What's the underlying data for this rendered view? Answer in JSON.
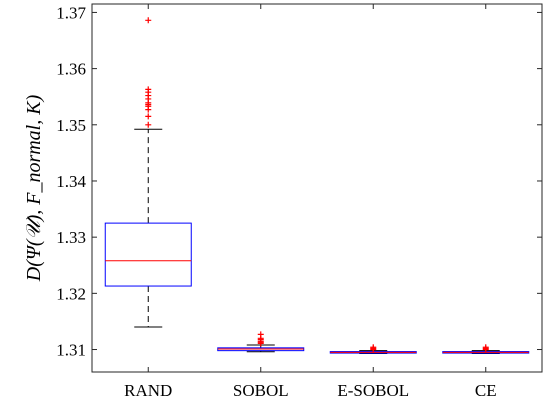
{
  "chart_data": {
    "type": "box",
    "categories": [
      "RAND",
      "SOBOL",
      "E-SOBOL",
      "CE"
    ],
    "ylabel": "D(Ψ(𝒰), F_normal, K)",
    "ylim": [
      1.306,
      1.3715
    ],
    "yticks": [
      1.31,
      1.32,
      1.33,
      1.34,
      1.35,
      1.36,
      1.37
    ],
    "ytick_labels": [
      "1.31",
      "1.32",
      "1.33",
      "1.34",
      "1.35",
      "1.36",
      "1.37"
    ],
    "grid": false,
    "boxes": [
      {
        "category": "RAND",
        "whisker_low": 1.314,
        "q1": 1.3213,
        "median": 1.3258,
        "q3": 1.3325,
        "whisker_high": 1.3492,
        "outliers": [
          1.35,
          1.3515,
          1.3527,
          1.3533,
          1.3536,
          1.3539,
          1.3546,
          1.3552,
          1.3558,
          1.3563,
          1.3686
        ]
      },
      {
        "category": "SOBOL",
        "whisker_low": 1.3096,
        "q1": 1.3098,
        "median": 1.3101,
        "q3": 1.3103,
        "whisker_high": 1.3108,
        "outliers": [
          1.3111,
          1.3113,
          1.3115,
          1.3118,
          1.312,
          1.3127
        ]
      },
      {
        "category": "E-SOBOL",
        "whisker_low": 1.3093,
        "q1": 1.3094,
        "median": 1.3095,
        "q3": 1.3096,
        "whisker_high": 1.3098,
        "outliers": [
          1.31,
          1.3102,
          1.3104
        ]
      },
      {
        "category": "CE",
        "whisker_low": 1.3093,
        "q1": 1.3094,
        "median": 1.3095,
        "q3": 1.3096,
        "whisker_high": 1.3098,
        "outliers": [
          1.31,
          1.3102,
          1.3104
        ]
      }
    ],
    "colors": {
      "box": "#0000ff",
      "median": "#ff0000",
      "whisker": "#000000",
      "outlier": "#ff0000"
    }
  }
}
